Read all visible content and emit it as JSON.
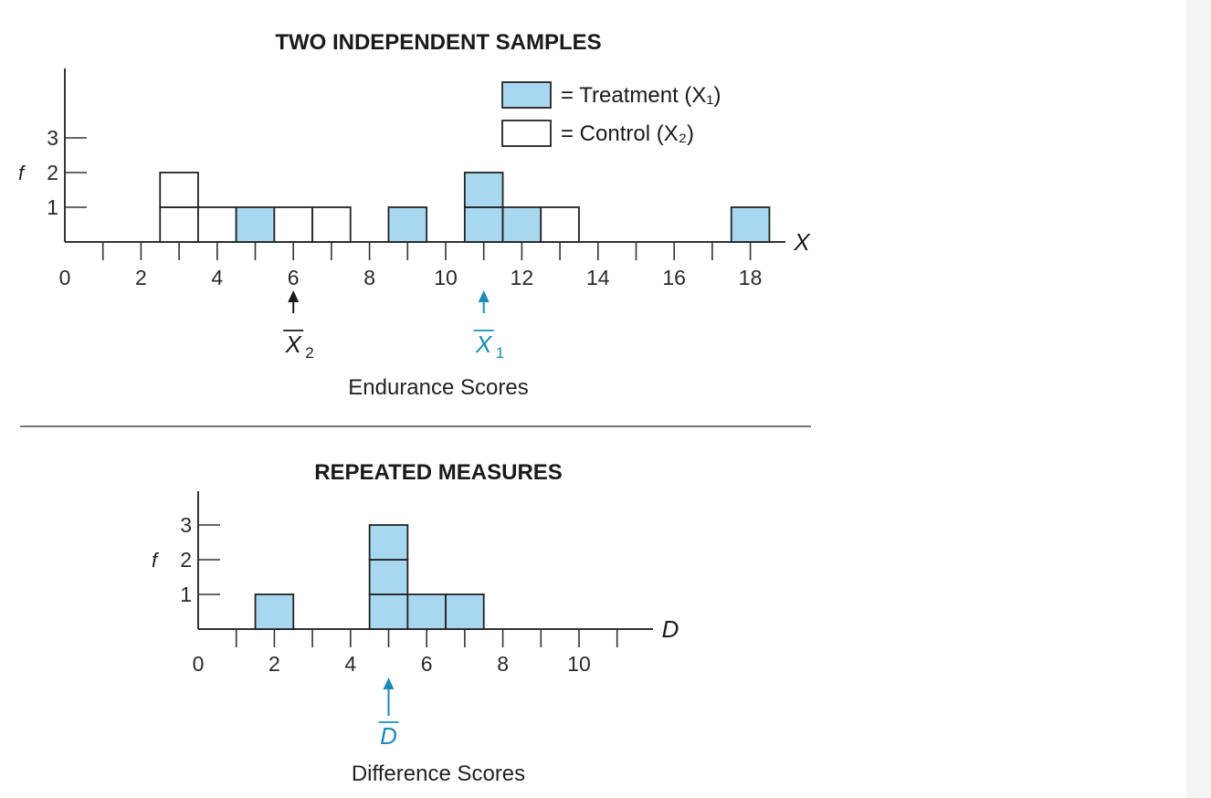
{
  "colors": {
    "treatment": "#a8d8ef",
    "control": "#ffffff",
    "accent": "#1b8bb5",
    "ink": "#1a1a1a"
  },
  "chart_data": [
    {
      "type": "bar",
      "subtype": "stacked-frequency-histogram",
      "title": "TWO INDEPENDENT SAMPLES",
      "xlabel": "Endurance Scores",
      "axis_variable": "X",
      "ylabel": "f",
      "xlim": [
        0,
        19
      ],
      "ylim": [
        0,
        4
      ],
      "x_ticks": [
        0,
        2,
        4,
        6,
        8,
        10,
        12,
        14,
        16,
        18
      ],
      "y_ticks": [
        1,
        2,
        3
      ],
      "legend": {
        "placement": "top-right",
        "entries": [
          {
            "series": "treatment",
            "text": "= Treatment (X₁)"
          },
          {
            "series": "control",
            "text": "= Control (X₂)"
          }
        ]
      },
      "series": [
        {
          "key": "treatment",
          "name": "Treatment (X₁)",
          "x": [
            5,
            9,
            11,
            11,
            12,
            18
          ]
        },
        {
          "key": "control",
          "name": "Control (X₂)",
          "x": [
            3,
            3,
            4,
            6,
            7,
            13
          ]
        }
      ],
      "stacks": [
        {
          "x": 3,
          "blocks": [
            "control",
            "control"
          ]
        },
        {
          "x": 4,
          "blocks": [
            "control"
          ]
        },
        {
          "x": 5,
          "blocks": [
            "treatment"
          ]
        },
        {
          "x": 6,
          "blocks": [
            "control"
          ]
        },
        {
          "x": 7,
          "blocks": [
            "control"
          ]
        },
        {
          "x": 9,
          "blocks": [
            "treatment"
          ]
        },
        {
          "x": 11,
          "blocks": [
            "treatment",
            "treatment"
          ]
        },
        {
          "x": 12,
          "blocks": [
            "treatment"
          ]
        },
        {
          "x": 13,
          "blocks": [
            "control"
          ]
        },
        {
          "x": 18,
          "blocks": [
            "treatment"
          ]
        }
      ],
      "means": [
        {
          "x": 6,
          "label": "X",
          "sub": "2",
          "color": "ink"
        },
        {
          "x": 11,
          "label": "X",
          "sub": "1",
          "color": "accent"
        }
      ]
    },
    {
      "type": "bar",
      "subtype": "stacked-frequency-histogram",
      "title": "REPEATED MEASURES",
      "xlabel": "Difference Scores",
      "axis_variable": "D",
      "ylabel": "f",
      "xlim": [
        0,
        12
      ],
      "ylim": [
        0,
        4
      ],
      "x_ticks": [
        0,
        2,
        4,
        6,
        8,
        10
      ],
      "y_ticks": [
        1,
        2,
        3
      ],
      "series": [
        {
          "key": "treatment",
          "name": "D",
          "x": [
            2,
            5,
            5,
            5,
            6,
            7
          ]
        }
      ],
      "stacks": [
        {
          "x": 2,
          "blocks": [
            "treatment"
          ]
        },
        {
          "x": 5,
          "blocks": [
            "treatment",
            "treatment",
            "treatment"
          ]
        },
        {
          "x": 6,
          "blocks": [
            "treatment"
          ]
        },
        {
          "x": 7,
          "blocks": [
            "treatment"
          ]
        }
      ],
      "means": [
        {
          "x": 5,
          "label": "D",
          "sub": "",
          "color": "accent"
        }
      ]
    }
  ]
}
